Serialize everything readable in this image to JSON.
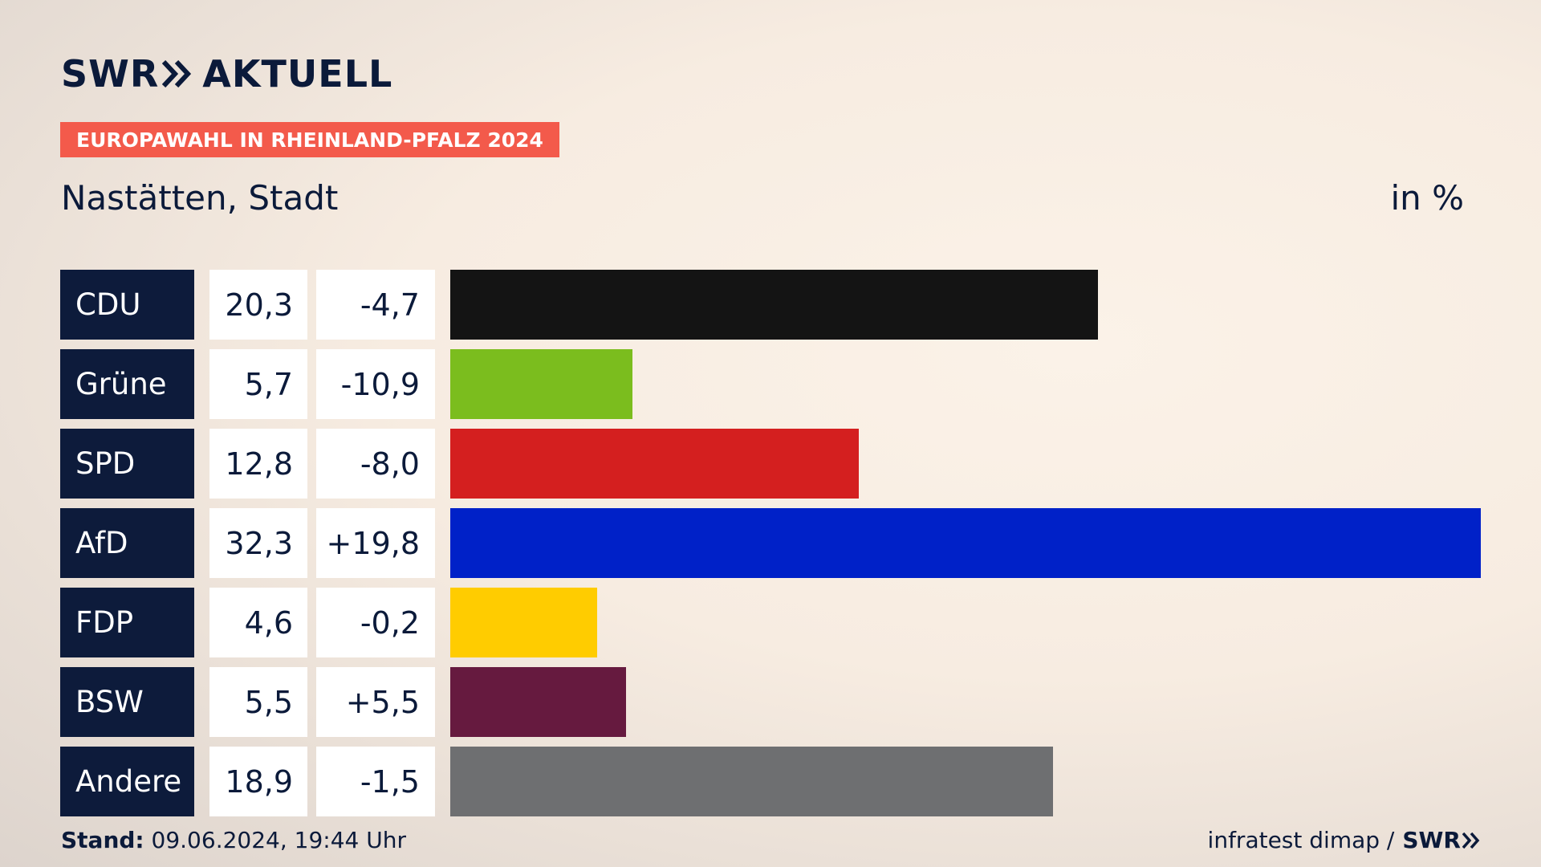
{
  "brand": {
    "name": "SWR",
    "product": "AKTUELL",
    "logo_icon": "double-chevron-icon",
    "color": "#0b1a3a"
  },
  "tag": {
    "label": "EUROPAWAHL IN RHEINLAND-PFALZ 2024",
    "color": "#f35a4b"
  },
  "subtitle": "Nastätten, Stadt",
  "unit": "in %",
  "footer": {
    "stand_label": "Stand:",
    "stand_value": "09.06.2024, 19:44 Uhr",
    "source": "infratest dimap /",
    "source_logo": "SWR"
  },
  "chart_data": {
    "type": "bar",
    "orientation": "horizontal",
    "categories": [
      "CDU",
      "Grüne",
      "SPD",
      "AfD",
      "FDP",
      "BSW",
      "Andere"
    ],
    "values": [
      20.3,
      5.7,
      12.8,
      32.3,
      4.6,
      5.5,
      18.9
    ],
    "value_labels": [
      "20,3",
      "5,7",
      "12,8",
      "32,3",
      "4,6",
      "5,5",
      "18,9"
    ],
    "diff_labels": [
      "-4,7",
      "-10,9",
      "-8,0",
      "+19,8",
      "-0,2",
      "+5,5",
      "-1,5"
    ],
    "colors": [
      "#141414",
      "#7bbd1e",
      "#d41f1f",
      "#0021c8",
      "#ffcc00",
      "#661a3f",
      "#6e6f71"
    ],
    "xlim": [
      0,
      32.3
    ],
    "grid": false
  }
}
